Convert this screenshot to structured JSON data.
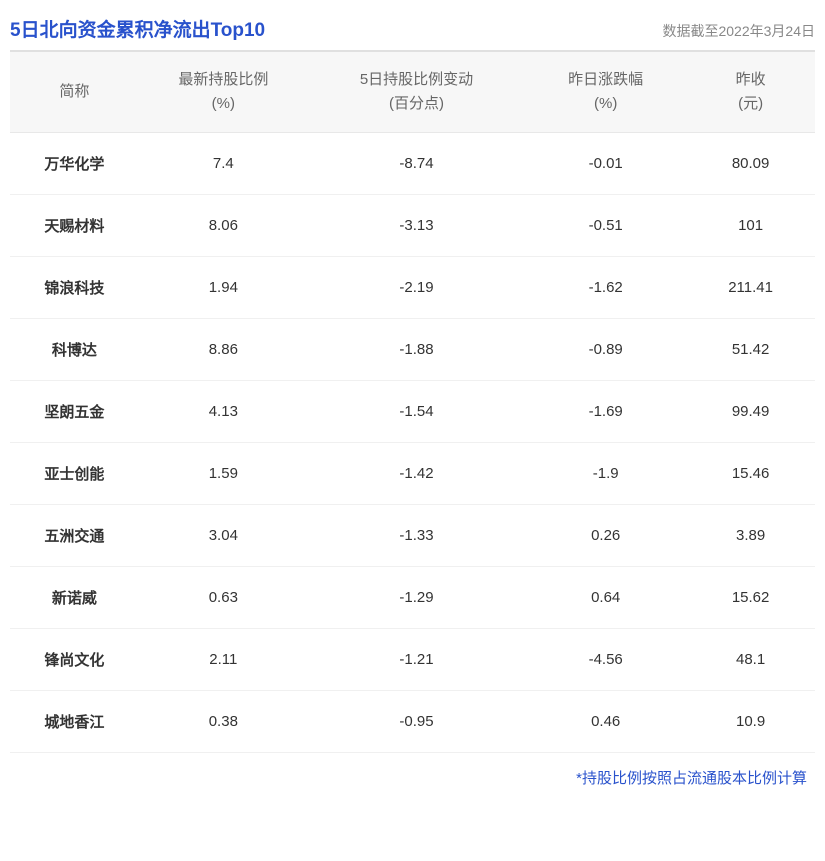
{
  "header": {
    "title": "5日北向资金累积净流出Top10",
    "date_label": "数据截至2022年3月24日"
  },
  "table": {
    "columns": [
      {
        "h1": "简称",
        "h2": ""
      },
      {
        "h1": "最新持股比例",
        "h2": "(%)"
      },
      {
        "h1": "5日持股比例变动",
        "h2": "(百分点)"
      },
      {
        "h1": "昨日涨跌幅",
        "h2": "(%)"
      },
      {
        "h1": "昨收",
        "h2": "(元)"
      }
    ],
    "rows": [
      {
        "name": "万华化学",
        "ratio": "7.4",
        "change5d": "-8.74",
        "pct": "-0.01",
        "pct_sign": "neg",
        "close": "80.09"
      },
      {
        "name": "天赐材料",
        "ratio": "8.06",
        "change5d": "-3.13",
        "pct": "-0.51",
        "pct_sign": "neg",
        "close": "101"
      },
      {
        "name": "锦浪科技",
        "ratio": "1.94",
        "change5d": "-2.19",
        "pct": "-1.62",
        "pct_sign": "neg",
        "close": "211.41"
      },
      {
        "name": "科博达",
        "ratio": "8.86",
        "change5d": "-1.88",
        "pct": "-0.89",
        "pct_sign": "neg",
        "close": "51.42"
      },
      {
        "name": "坚朗五金",
        "ratio": "4.13",
        "change5d": "-1.54",
        "pct": "-1.69",
        "pct_sign": "neg",
        "close": "99.49"
      },
      {
        "name": "亚士创能",
        "ratio": "1.59",
        "change5d": "-1.42",
        "pct": "-1.9",
        "pct_sign": "neg",
        "close": "15.46"
      },
      {
        "name": "五洲交通",
        "ratio": "3.04",
        "change5d": "-1.33",
        "pct": "0.26",
        "pct_sign": "pos",
        "close": "3.89"
      },
      {
        "name": "新诺威",
        "ratio": "0.63",
        "change5d": "-1.29",
        "pct": "0.64",
        "pct_sign": "pos",
        "close": "15.62"
      },
      {
        "name": "锋尚文化",
        "ratio": "2.11",
        "change5d": "-1.21",
        "pct": "-4.56",
        "pct_sign": "neg",
        "close": "48.1"
      },
      {
        "name": "城地香江",
        "ratio": "0.38",
        "change5d": "-0.95",
        "pct": "0.46",
        "pct_sign": "pos",
        "close": "10.9"
      }
    ]
  },
  "footnote": "*持股比例按照占流通股本比例计算",
  "style": {
    "title_color": "#2952cc",
    "date_color": "#888888",
    "header_bg": "#f7f7f7",
    "header_text": "#666666",
    "row_border": "#f0f0f0",
    "stock_name_color": "#2952cc",
    "pos_color": "#d91e1e",
    "neg_color": "#1fa845",
    "cell_text": "#333333",
    "footnote_color": "#2952cc",
    "title_fontsize": 19,
    "date_fontsize": 14,
    "header_fontsize": 15,
    "cell_fontsize": 15
  }
}
